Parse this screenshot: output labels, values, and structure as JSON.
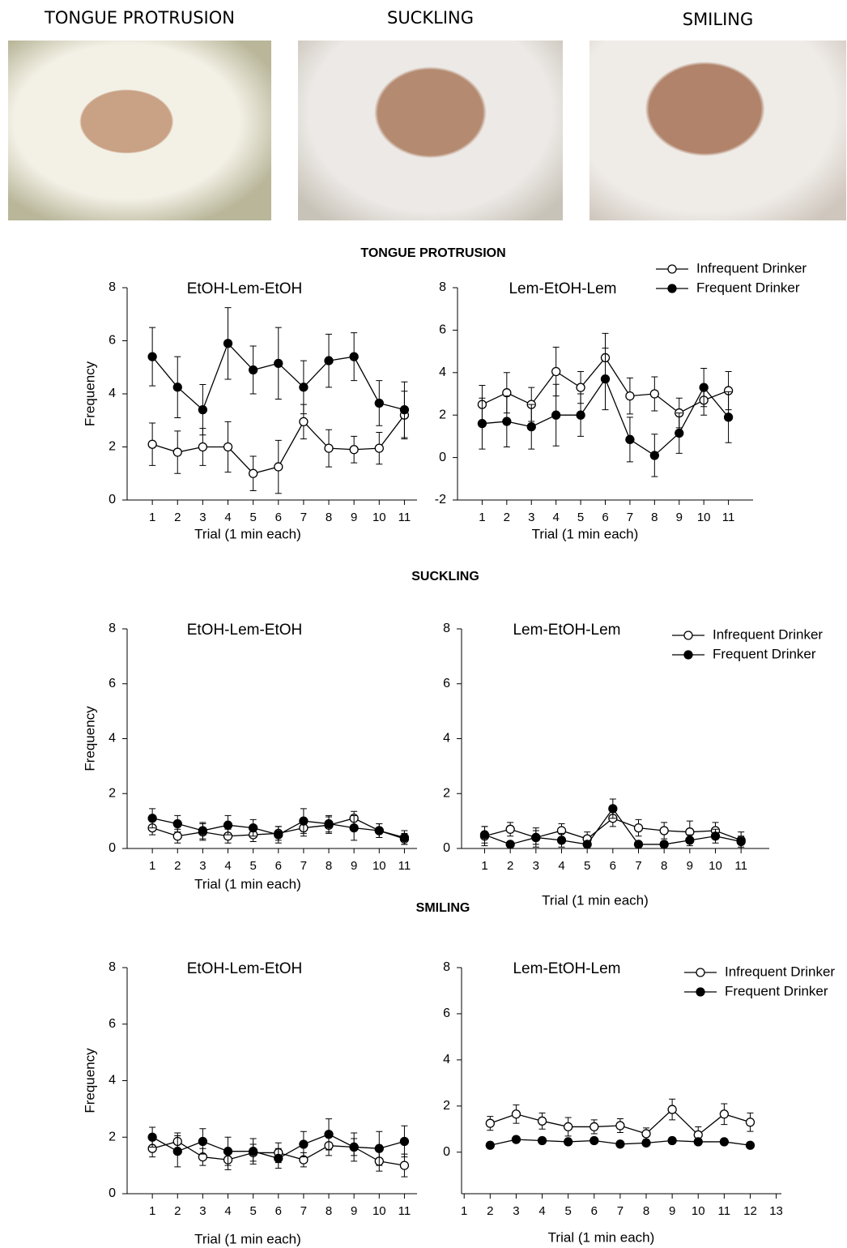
{
  "photos": [
    {
      "caption": "TONGUE PROTRUSION"
    },
    {
      "caption": "SUCKLING"
    },
    {
      "caption": "SMILING"
    }
  ],
  "sections": [
    "TONGUE PROTRUSION",
    "SUCKLING",
    "SMILING"
  ],
  "chart_data": [
    {
      "type": "line",
      "title": "EtOH-Lem-EtOH",
      "y_label": "Frequency",
      "x_label": "Trial (1 min each)",
      "x": [
        1,
        2,
        3,
        4,
        5,
        6,
        7,
        8,
        9,
        10,
        11
      ],
      "xlim": [
        0,
        11.5
      ],
      "xticks": [
        1,
        2,
        3,
        4,
        5,
        6,
        7,
        8,
        9,
        10,
        11
      ],
      "ylim": [
        0,
        8
      ],
      "yticks": [
        0,
        2,
        4,
        6,
        8
      ],
      "series": [
        {
          "name": "Infrequent Drinker",
          "color": "#000000",
          "marker_fill": "#ffffff",
          "values": [
            2.1,
            1.8,
            2.0,
            2.0,
            1.0,
            1.25,
            2.95,
            1.95,
            1.9,
            1.95,
            3.2
          ],
          "errors": [
            0.8,
            0.8,
            0.7,
            0.95,
            0.65,
            1.0,
            0.65,
            0.7,
            0.5,
            0.6,
            0.9
          ]
        },
        {
          "name": "Frequent Drinker",
          "color": "#000000",
          "marker_fill": "#000000",
          "values": [
            5.4,
            4.25,
            3.4,
            5.9,
            4.9,
            5.15,
            4.25,
            5.25,
            5.4,
            3.65,
            3.4
          ],
          "errors": [
            1.1,
            1.15,
            0.95,
            1.35,
            0.9,
            1.35,
            1.0,
            1.0,
            0.9,
            0.85,
            1.05
          ]
        }
      ]
    },
    {
      "type": "line",
      "title": "Lem-EtOH-Lem",
      "x_label": "Trial (1 min each)",
      "legend": "upper right",
      "x": [
        1,
        2,
        3,
        4,
        5,
        6,
        7,
        8,
        9,
        10,
        11
      ],
      "xlim": [
        0,
        12
      ],
      "xticks": [
        1,
        2,
        3,
        4,
        5,
        6,
        7,
        8,
        9,
        10,
        11
      ],
      "ylim": [
        -2,
        8
      ],
      "yticks": [
        -2,
        0,
        2,
        4,
        6,
        8
      ],
      "series": [
        {
          "name": "Infrequent Drinker",
          "color": "#000000",
          "marker_fill": "#ffffff",
          "values": [
            2.5,
            3.05,
            2.5,
            4.05,
            3.3,
            4.7,
            2.9,
            3.0,
            2.1,
            2.7,
            3.15
          ],
          "errors": [
            0.9,
            0.95,
            0.8,
            1.15,
            0.75,
            1.15,
            0.85,
            0.8,
            0.7,
            0.7,
            0.9
          ]
        },
        {
          "name": "Frequent Drinker",
          "color": "#000000",
          "marker_fill": "#000000",
          "values": [
            1.6,
            1.7,
            1.45,
            2.0,
            2.0,
            3.7,
            0.85,
            0.1,
            1.15,
            3.3,
            1.9
          ],
          "errors": [
            1.2,
            1.2,
            1.05,
            1.45,
            1.0,
            1.45,
            1.05,
            1.0,
            0.95,
            0.9,
            1.2
          ]
        }
      ]
    },
    {
      "type": "line",
      "title": "EtOH-Lem-EtOH",
      "y_label": "Frequency",
      "x_label": "Trial (1 min each)",
      "x": [
        1,
        2,
        3,
        4,
        5,
        6,
        7,
        8,
        9,
        10,
        11
      ],
      "xlim": [
        0,
        11.5
      ],
      "xticks": [
        1,
        2,
        3,
        4,
        5,
        6,
        7,
        8,
        9,
        10,
        11
      ],
      "ylim": [
        0,
        8
      ],
      "yticks": [
        0,
        2,
        4,
        6,
        8
      ],
      "series": [
        {
          "name": "Infrequent Drinker",
          "color": "#000000",
          "marker_fill": "#ffffff",
          "values": [
            0.75,
            0.45,
            0.6,
            0.45,
            0.5,
            0.55,
            0.75,
            0.85,
            1.1,
            0.65,
            0.35
          ],
          "errors": [
            0.25,
            0.25,
            0.3,
            0.25,
            0.25,
            0.25,
            0.3,
            0.3,
            0.25,
            0.25,
            0.2
          ]
        },
        {
          "name": "Frequent Drinker",
          "color": "#000000",
          "marker_fill": "#000000",
          "values": [
            1.1,
            0.9,
            0.65,
            0.85,
            0.75,
            0.5,
            1.0,
            0.9,
            0.75,
            0.65,
            0.4
          ],
          "errors": [
            0.35,
            0.3,
            0.3,
            0.35,
            0.3,
            0.3,
            0.45,
            0.3,
            0.45,
            0.25,
            0.25
          ]
        }
      ]
    },
    {
      "type": "line",
      "title": "Lem-EtOH-Lem",
      "x_label": "Trial (1 min each)",
      "legend": "upper right",
      "x": [
        1,
        2,
        3,
        4,
        5,
        6,
        7,
        8,
        9,
        10,
        11
      ],
      "xlim": [
        0.1,
        12.1
      ],
      "xticks": [
        1,
        2,
        3,
        4,
        5,
        6,
        7,
        8,
        9,
        10,
        11
      ],
      "ylim": [
        0,
        8
      ],
      "yticks": [
        0,
        2,
        4,
        6,
        8
      ],
      "series": [
        {
          "name": "Infrequent Drinker",
          "color": "#000000",
          "marker_fill": "#ffffff",
          "values": [
            0.45,
            0.7,
            0.4,
            0.65,
            0.35,
            1.1,
            0.75,
            0.65,
            0.6,
            0.65,
            0.3
          ],
          "errors": [
            0.35,
            0.25,
            0.35,
            0.25,
            0.25,
            0.3,
            0.3,
            0.3,
            0.4,
            0.3,
            0.3
          ]
        },
        {
          "name": "Frequent Drinker",
          "color": "#000000",
          "marker_fill": "#000000",
          "values": [
            0.5,
            0.15,
            0.4,
            0.3,
            0.15,
            1.45,
            0.15,
            0.15,
            0.3,
            0.45,
            0.25
          ],
          "errors": [
            0.3,
            0.1,
            0.25,
            0.25,
            0.1,
            0.35,
            0.1,
            0.1,
            0.2,
            0.25,
            0.2
          ]
        }
      ]
    },
    {
      "type": "line",
      "title": "EtOH-Lem-EtOH",
      "y_label": "Frequency",
      "x_label": "Trial (1 min each)",
      "x": [
        1,
        2,
        3,
        4,
        5,
        6,
        7,
        8,
        9,
        10,
        11
      ],
      "xlim": [
        0,
        11.5
      ],
      "xticks": [
        1,
        2,
        3,
        4,
        5,
        6,
        7,
        8,
        9,
        10,
        11
      ],
      "ylim": [
        0,
        8
      ],
      "yticks": [
        0,
        2,
        4,
        6,
        8
      ],
      "series": [
        {
          "name": "Infrequent Drinker",
          "color": "#000000",
          "marker_fill": "#ffffff",
          "values": [
            1.6,
            1.85,
            1.3,
            1.2,
            1.45,
            1.45,
            1.2,
            1.7,
            1.65,
            1.15,
            1.0
          ],
          "errors": [
            0.3,
            0.3,
            0.3,
            0.35,
            0.3,
            0.35,
            0.25,
            0.35,
            0.3,
            0.35,
            0.4
          ]
        },
        {
          "name": "Frequent Drinker",
          "color": "#000000",
          "marker_fill": "#000000",
          "values": [
            2.0,
            1.5,
            1.85,
            1.5,
            1.5,
            1.25,
            1.75,
            2.1,
            1.65,
            1.6,
            1.85
          ],
          "errors": [
            0.35,
            0.55,
            0.45,
            0.5,
            0.45,
            0.35,
            0.45,
            0.55,
            0.5,
            0.6,
            0.55
          ]
        }
      ]
    },
    {
      "type": "line",
      "title": "Lem-EtOH-Lem",
      "x_label": "Trial (1 min each)",
      "legend": "upper right",
      "x": [
        2,
        3,
        4,
        5,
        6,
        7,
        8,
        9,
        10,
        11,
        12
      ],
      "xlim": [
        0.9,
        13.2
      ],
      "xticks": [
        1,
        2,
        3,
        4,
        5,
        6,
        7,
        8,
        9,
        10,
        11,
        12,
        13
      ],
      "ylim": [
        -1.8,
        8
      ],
      "yticks": [
        0,
        2,
        4,
        6,
        8
      ],
      "series": [
        {
          "name": "Infrequent Drinker",
          "color": "#000000",
          "marker_fill": "#ffffff",
          "values": [
            1.25,
            1.65,
            1.35,
            1.1,
            1.1,
            1.15,
            0.8,
            1.85,
            0.75,
            1.65,
            1.3
          ],
          "errors": [
            0.3,
            0.4,
            0.35,
            0.4,
            0.3,
            0.3,
            0.25,
            0.45,
            0.35,
            0.45,
            0.4
          ]
        },
        {
          "name": "Frequent Drinker",
          "color": "#000000",
          "marker_fill": "#000000",
          "values": [
            0.3,
            0.55,
            0.5,
            0.45,
            0.5,
            0.35,
            0.4,
            0.5,
            0.45,
            0.45,
            0.3
          ],
          "errors": [
            0.05,
            0.05,
            0.05,
            0.05,
            0.05,
            0.05,
            0.05,
            0.05,
            0.05,
            0.05,
            0.05
          ]
        }
      ]
    }
  ]
}
